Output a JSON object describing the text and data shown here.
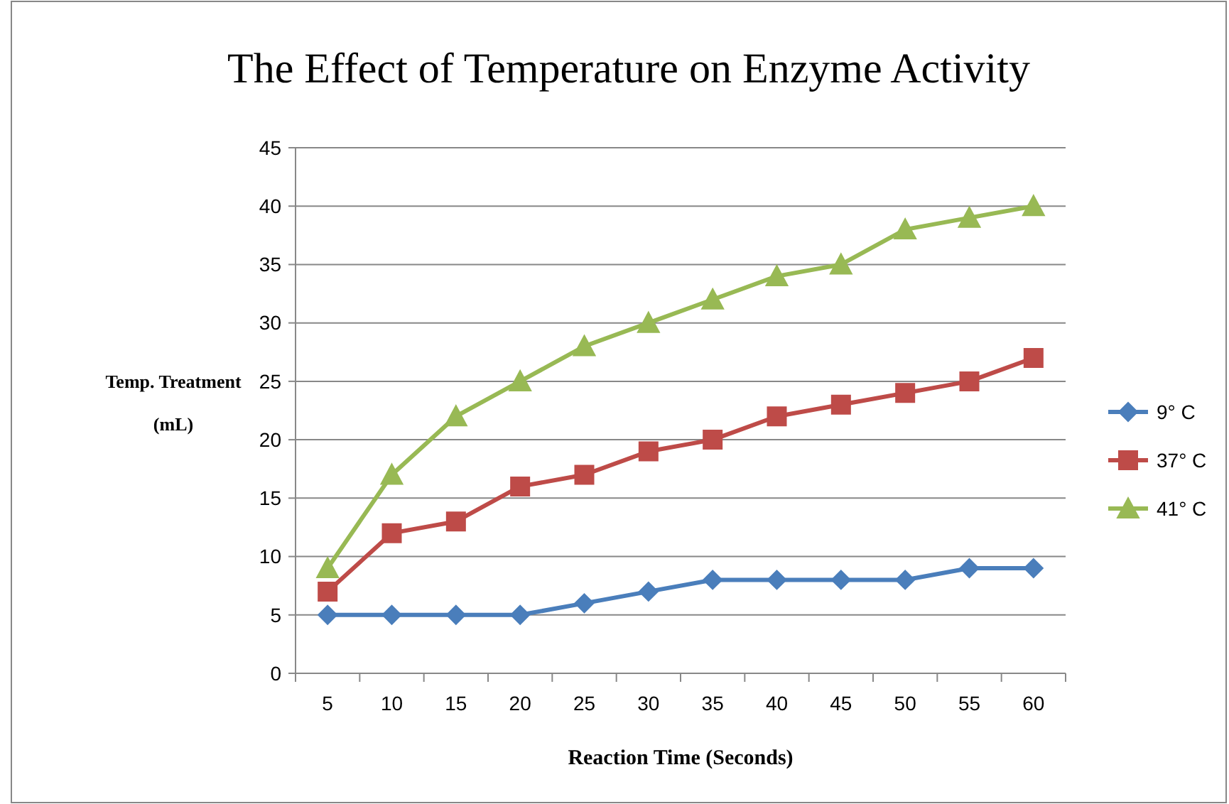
{
  "chart_data": {
    "type": "line",
    "title": "The Effect of Temperature on Enzyme Activity",
    "xlabel": "Reaction Time (Seconds)",
    "ylabel": "Temp. Treatment (mL)",
    "categories": [
      "5",
      "10",
      "15",
      "20",
      "25",
      "30",
      "35",
      "40",
      "45",
      "50",
      "55",
      "60"
    ],
    "series": [
      {
        "name": "9° C",
        "color": "#4a7ebb",
        "marker": "diamond",
        "values": [
          5,
          5,
          5,
          5,
          6,
          7,
          8,
          8,
          8,
          8,
          9,
          9
        ]
      },
      {
        "name": "37° C",
        "color": "#be4b48",
        "marker": "square",
        "values": [
          7,
          12,
          13,
          16,
          17,
          19,
          20,
          22,
          23,
          24,
          25,
          27
        ]
      },
      {
        "name": "41° C",
        "color": "#98b954",
        "marker": "triangle",
        "values": [
          9,
          17,
          22,
          25,
          28,
          30,
          32,
          34,
          35,
          38,
          39,
          40
        ]
      }
    ],
    "ylim": [
      0,
      45
    ],
    "yticks": [
      0,
      5,
      10,
      15,
      20,
      25,
      30,
      35,
      40,
      45
    ],
    "grid": "y",
    "legend": "right",
    "line_style": "solid"
  }
}
